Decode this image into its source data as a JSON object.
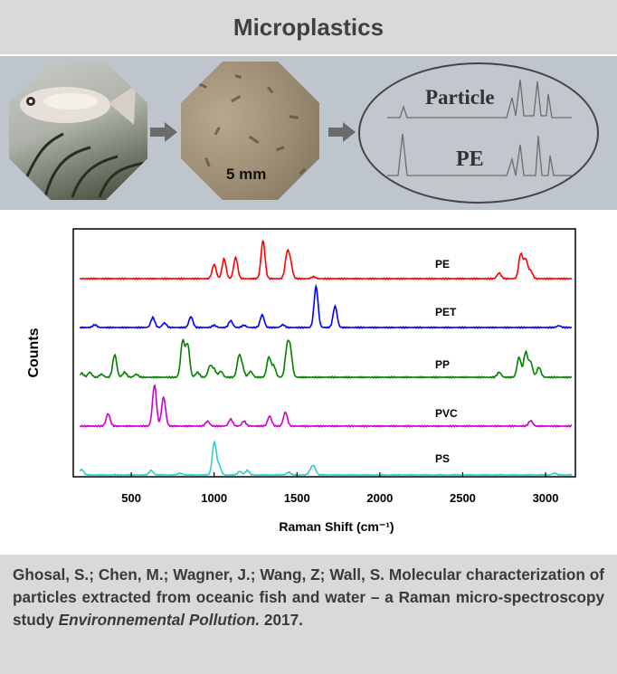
{
  "header": {
    "title": "Microplastics"
  },
  "banner": {
    "scale_label": "5 mm",
    "ellipse_labels": [
      "Particle",
      "PE"
    ]
  },
  "citation": {
    "authors": "Ghosal, S.; Chen, M.; Wagner, J.; Wang, Z; Wall, S.",
    "title": "Molecular characterization of particles extracted from oceanic fish and water – a Raman micro-spectroscopy study",
    "journal": "Environnemental Pollution.",
    "year": "2017."
  },
  "chart_data": {
    "type": "line",
    "title": "",
    "xlabel": "Raman Shift (cm⁻¹)",
    "ylabel": "Counts",
    "xlim": [
      150,
      3180
    ],
    "xticks": [
      500,
      1000,
      1500,
      2000,
      2500,
      3000
    ],
    "grid": false,
    "legend": "inline labels to the right of each trace",
    "series": [
      {
        "name": "PE",
        "color": "#ff0000",
        "peaks": [
          [
            1000,
            0.3
          ],
          [
            1060,
            0.42
          ],
          [
            1130,
            0.45
          ],
          [
            1295,
            0.8
          ],
          [
            1440,
            0.5
          ],
          [
            1460,
            0.32
          ],
          [
            1600,
            0.04
          ],
          [
            2720,
            0.12
          ],
          [
            2850,
            0.52
          ],
          [
            2880,
            0.4
          ],
          [
            2910,
            0.16
          ]
        ]
      },
      {
        "name": "PET",
        "color": "#0000ff",
        "peaks": [
          [
            280,
            0.06
          ],
          [
            630,
            0.22
          ],
          [
            700,
            0.1
          ],
          [
            860,
            0.24
          ],
          [
            1000,
            0.05
          ],
          [
            1100,
            0.15
          ],
          [
            1180,
            0.05
          ],
          [
            1290,
            0.28
          ],
          [
            1415,
            0.06
          ],
          [
            1615,
            0.9
          ],
          [
            1730,
            0.47
          ],
          [
            3080,
            0.04
          ]
        ]
      },
      {
        "name": "PP",
        "color": "#008000",
        "peaks": [
          [
            200,
            0.08
          ],
          [
            250,
            0.1
          ],
          [
            320,
            0.06
          ],
          [
            400,
            0.45
          ],
          [
            460,
            0.1
          ],
          [
            530,
            0.06
          ],
          [
            810,
            0.72
          ],
          [
            840,
            0.65
          ],
          [
            900,
            0.1
          ],
          [
            975,
            0.22
          ],
          [
            1000,
            0.15
          ],
          [
            1040,
            0.12
          ],
          [
            1150,
            0.4
          ],
          [
            1170,
            0.18
          ],
          [
            1220,
            0.12
          ],
          [
            1330,
            0.4
          ],
          [
            1360,
            0.22
          ],
          [
            1440,
            0.55
          ],
          [
            1460,
            0.5
          ],
          [
            2720,
            0.1
          ],
          [
            2840,
            0.4
          ],
          [
            2880,
            0.5
          ],
          [
            2910,
            0.3
          ],
          [
            2960,
            0.2
          ]
        ]
      },
      {
        "name": "PVC",
        "color": "#cc00cc",
        "peaks": [
          [
            360,
            0.25
          ],
          [
            640,
            0.82
          ],
          [
            695,
            0.58
          ],
          [
            960,
            0.1
          ],
          [
            1100,
            0.14
          ],
          [
            1180,
            0.1
          ],
          [
            1335,
            0.2
          ],
          [
            1430,
            0.28
          ],
          [
            2910,
            0.11
          ]
        ]
      },
      {
        "name": "PS",
        "color": "#33cccc",
        "peaks": [
          [
            200,
            0.12
          ],
          [
            620,
            0.1
          ],
          [
            795,
            0.04
          ],
          [
            1001,
            0.72
          ],
          [
            1030,
            0.2
          ],
          [
            1155,
            0.08
          ],
          [
            1200,
            0.1
          ],
          [
            1450,
            0.06
          ],
          [
            1583,
            0.1
          ],
          [
            1602,
            0.18
          ],
          [
            3054,
            0.04
          ]
        ]
      }
    ]
  }
}
